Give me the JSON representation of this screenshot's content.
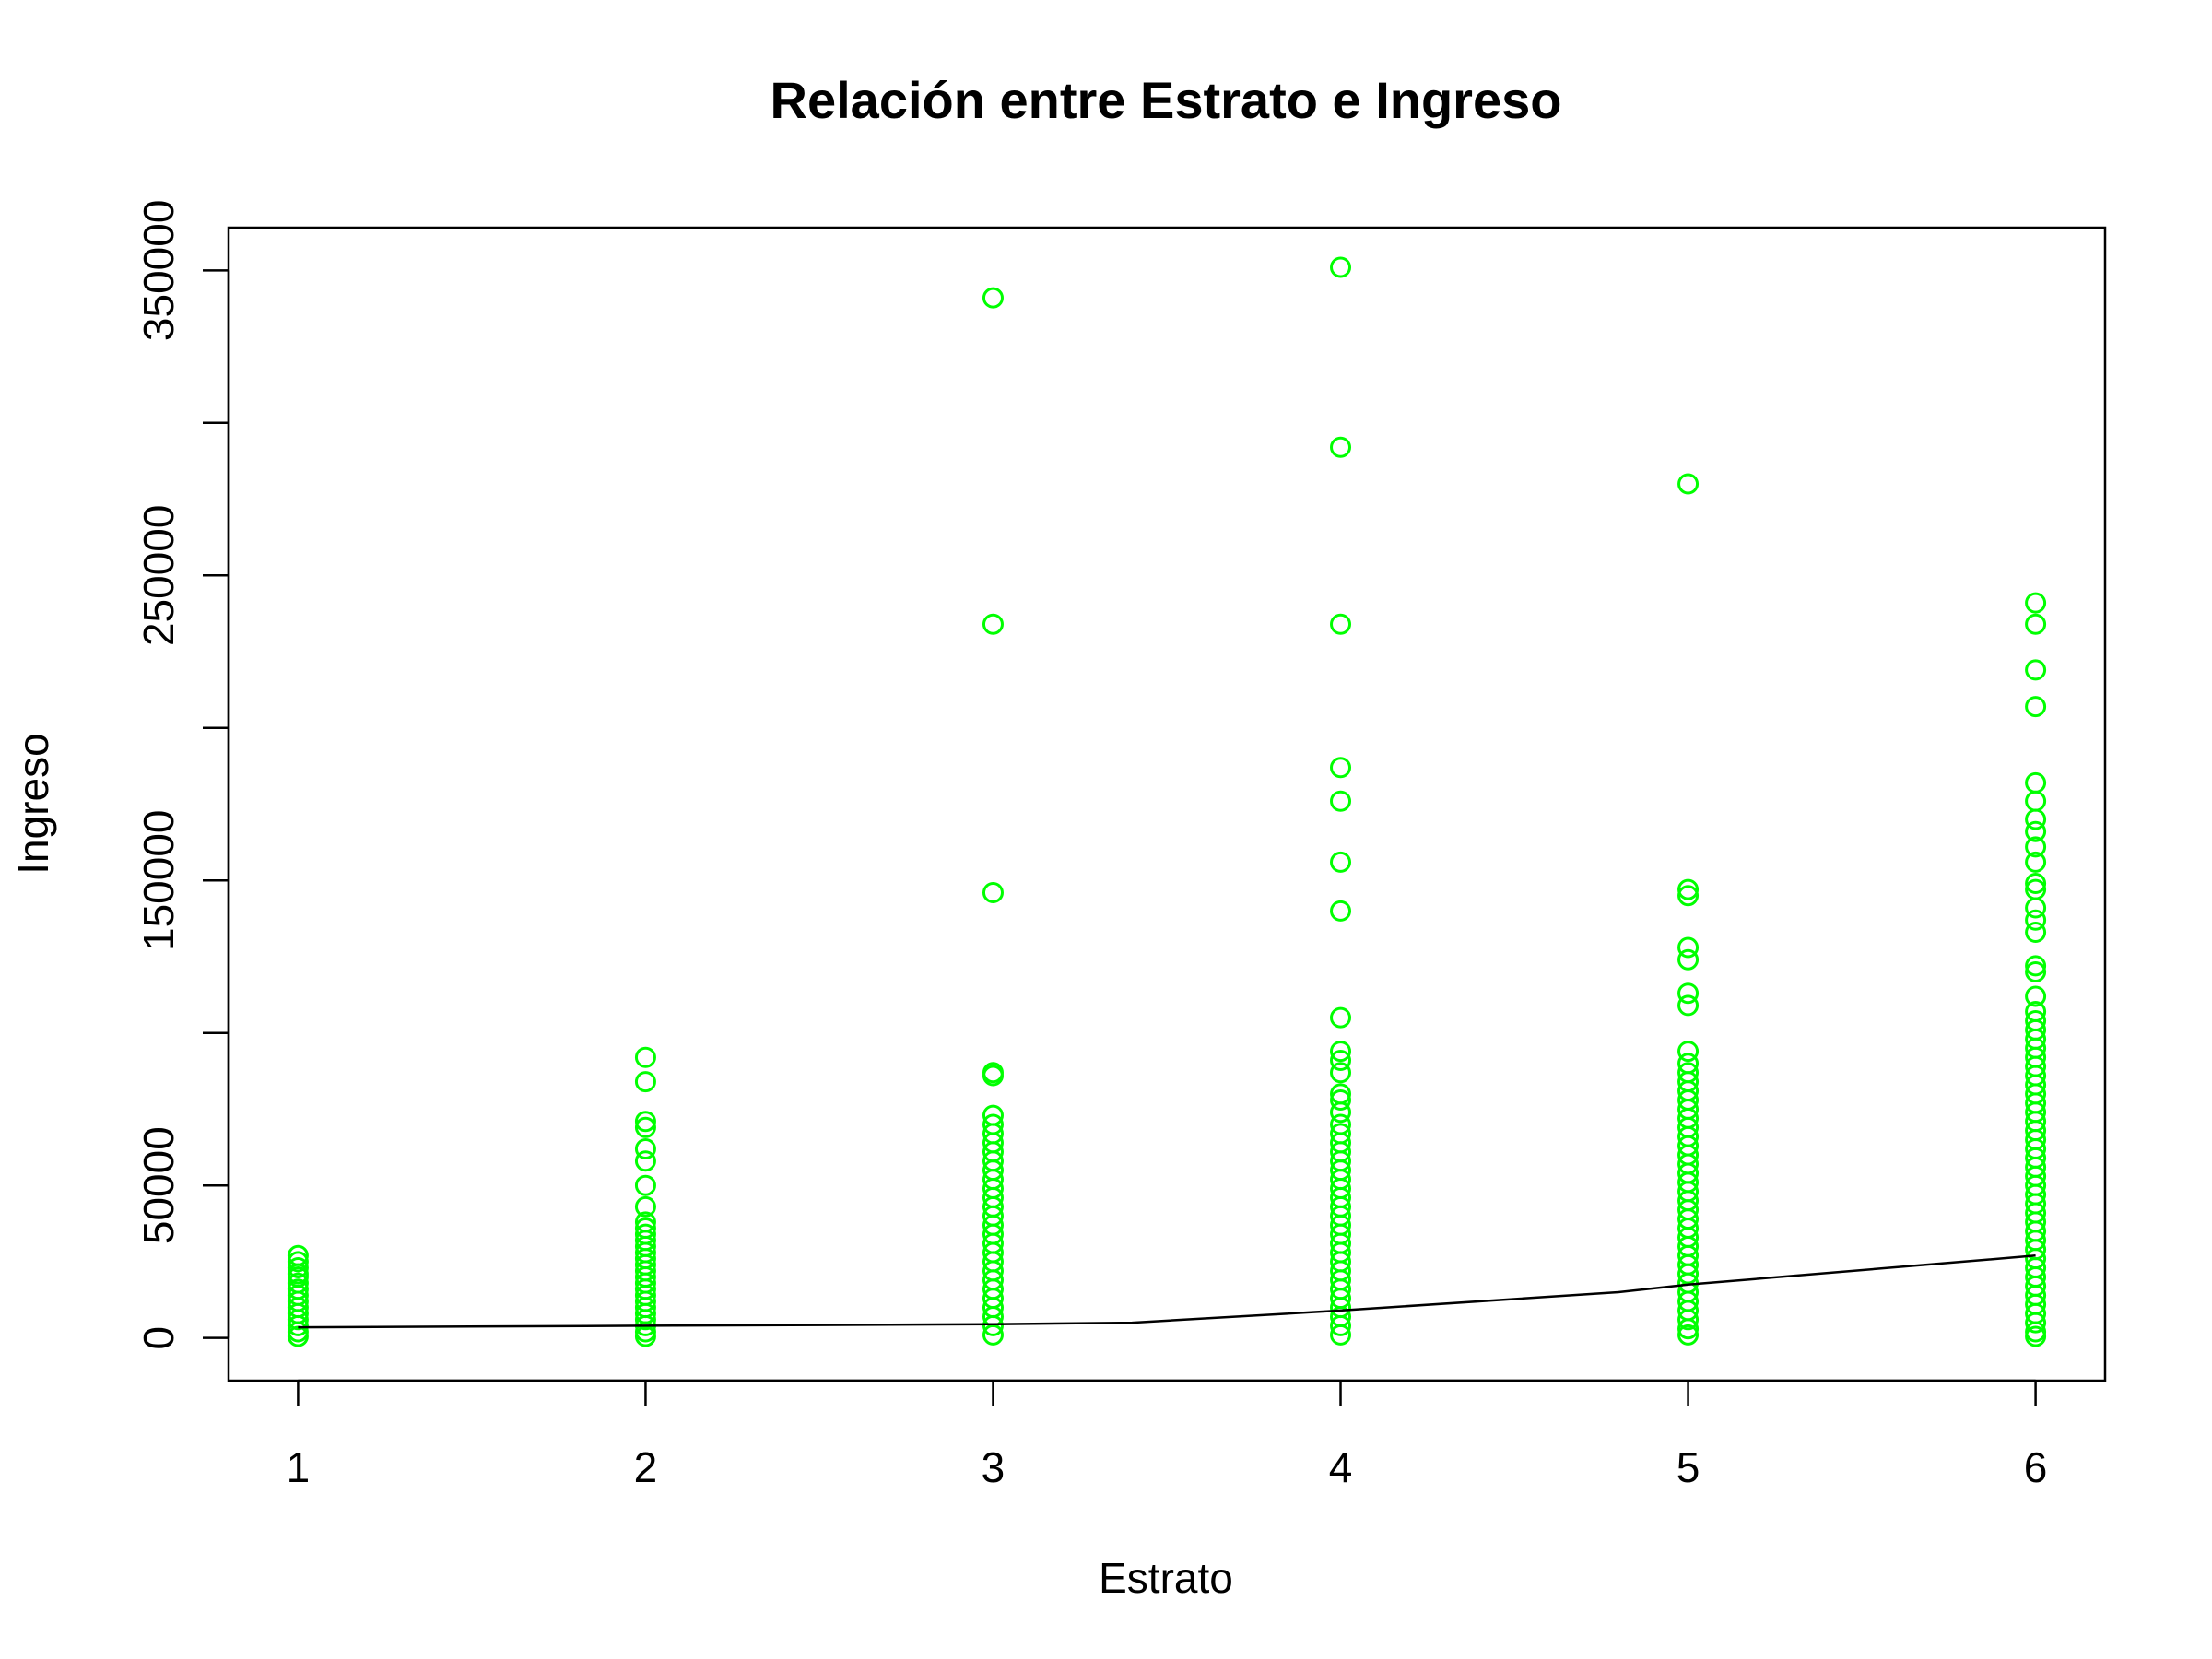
{
  "chart_data": {
    "type": "scatter",
    "title": "Relación entre Estrato e Ingreso",
    "xlabel": "Estrato",
    "ylabel": "Ingreso",
    "xlim": [
      0.8,
      6.2
    ],
    "ylim": [
      -14000,
      364000
    ],
    "x_ticks": [
      1,
      2,
      3,
      4,
      5,
      6
    ],
    "y_ticks": [
      0,
      50000,
      100000,
      150000,
      200000,
      250000,
      300000,
      350000
    ],
    "y_tick_labels": [
      "0",
      "50000",
      "",
      "150000",
      "",
      "250000",
      "",
      "350000"
    ],
    "grid": false,
    "legend": "none",
    "point_color": "#00FF00",
    "line_color": "#000000",
    "series": [
      {
        "type": "scatter",
        "points": [
          {
            "x": 1,
            "values": [
              27000,
              25000,
              23000,
              21000,
              20000,
              18000,
              16000,
              14000,
              12000,
              10000,
              8000,
              6000,
              4000,
              2000,
              500
            ]
          },
          {
            "x": 2,
            "values": [
              92000,
              84000,
              71000,
              69000,
              62000,
              58000,
              50000,
              43000,
              38000,
              36000,
              34000,
              32000,
              30000,
              28000,
              26000,
              24000,
              22000,
              20000,
              18000,
              16000,
              14000,
              12000,
              10000,
              8000,
              6000,
              4000,
              2000,
              500
            ]
          },
          {
            "x": 3,
            "values": [
              341000,
              234000,
              146000,
              87000,
              86000,
              73000,
              70000,
              67000,
              64000,
              61000,
              58000,
              55000,
              52000,
              49000,
              46000,
              43000,
              40000,
              37000,
              34000,
              31000,
              28000,
              25000,
              22000,
              19000,
              16000,
              13000,
              10000,
              7000,
              4000,
              1000
            ]
          },
          {
            "x": 4,
            "values": [
              351000,
              292000,
              234000,
              187000,
              176000,
              156000,
              140000,
              105000,
              94000,
              91000,
              87000,
              80000,
              78000,
              74000,
              70000,
              67000,
              64000,
              61000,
              58000,
              55000,
              52000,
              49000,
              46000,
              43000,
              40000,
              37000,
              34000,
              31000,
              28000,
              25000,
              22000,
              19000,
              16000,
              13000,
              10000,
              7000,
              4000,
              1000
            ]
          },
          {
            "x": 5,
            "values": [
              280000,
              147000,
              145000,
              128000,
              124000,
              113000,
              109000,
              94000,
              90000,
              87000,
              84000,
              81000,
              78000,
              75000,
              72000,
              69000,
              66000,
              63000,
              60000,
              57000,
              54000,
              51000,
              48000,
              45000,
              42000,
              39000,
              36000,
              33000,
              30000,
              27000,
              24000,
              21000,
              18000,
              15000,
              12000,
              9000,
              6000,
              3000,
              1000
            ]
          },
          {
            "x": 6,
            "values": [
              241000,
              234000,
              219000,
              207000,
              182000,
              176000,
              170000,
              166000,
              161000,
              156000,
              149000,
              147000,
              141000,
              137000,
              133000,
              122000,
              120000,
              112000,
              107000,
              104000,
              101000,
              98000,
              95000,
              92000,
              89000,
              86000,
              83000,
              80000,
              77000,
              74000,
              71000,
              68000,
              65000,
              62000,
              59000,
              56000,
              53000,
              50000,
              47000,
              44000,
              41000,
              38000,
              35000,
              32000,
              29000,
              26000,
              23000,
              20000,
              17000,
              14000,
              11000,
              8000,
              5000,
              2000,
              500
            ]
          }
        ]
      },
      {
        "type": "line",
        "x": [
          1,
          2,
          3,
          3.4,
          4,
          4.8,
          5,
          6
        ],
        "values": [
          3500,
          4000,
          4500,
          5000,
          9000,
          15000,
          17500,
          27000
        ]
      }
    ]
  }
}
